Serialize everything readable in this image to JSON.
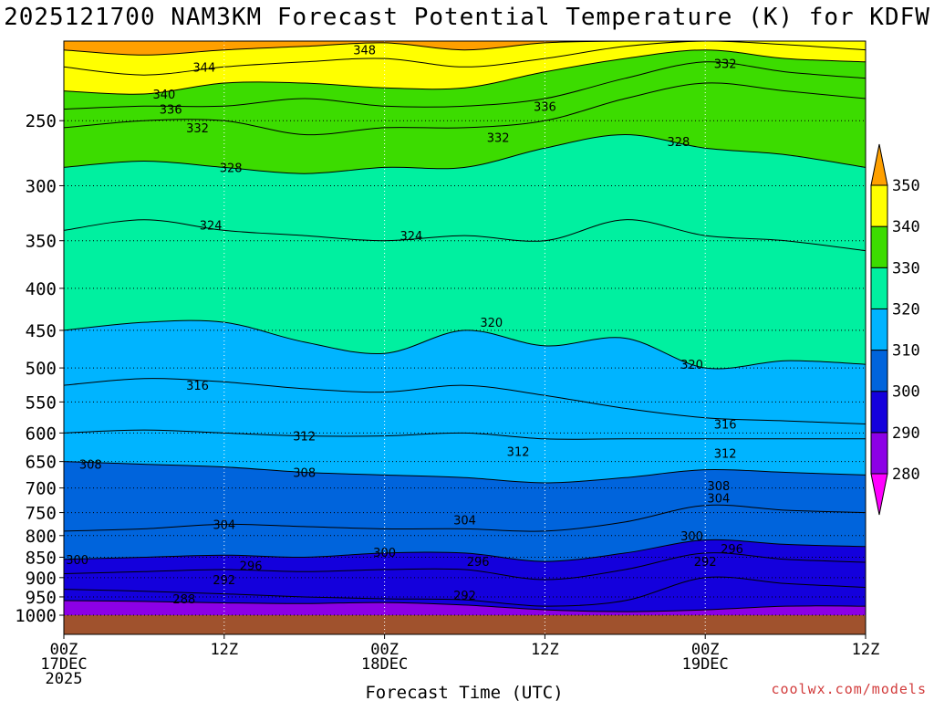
{
  "title": "2025121700 NAM3KM Forecast Potential Temperature (K) for KDFW",
  "credit": "coolwx.com/models",
  "chart_data": {
    "type": "contour",
    "title": "2025121700 NAM3KM Forecast Potential Temperature (K) for KDFW",
    "xlabel": "Forecast Time (UTC)",
    "ylabel": "",
    "x_ticks": [
      {
        "hour": 0,
        "lines": [
          "00Z",
          "17DEC",
          "2025"
        ]
      },
      {
        "hour": 12,
        "lines": [
          "12Z"
        ]
      },
      {
        "hour": 24,
        "lines": [
          "00Z",
          "18DEC"
        ]
      },
      {
        "hour": 36,
        "lines": [
          "12Z"
        ]
      },
      {
        "hour": 48,
        "lines": [
          "00Z",
          "19DEC"
        ]
      },
      {
        "hour": 60,
        "lines": [
          "12Z"
        ]
      }
    ],
    "xlim": [
      0,
      60
    ],
    "y_ticks": [
      250,
      300,
      350,
      400,
      450,
      500,
      550,
      600,
      650,
      700,
      750,
      800,
      850,
      900,
      950,
      1000
    ],
    "ylim": [
      200,
      1000
    ],
    "y_scale": "log-pressure",
    "grid": true,
    "colorbar": {
      "levels": [
        280,
        290,
        300,
        310,
        320,
        330,
        340,
        350
      ],
      "colors": [
        "#ff00ff",
        "#8c00e6",
        "#1400dc",
        "#0064dc",
        "#00b4ff",
        "#00f0a0",
        "#3cdc00",
        "#ffff00",
        "#ffa000"
      ]
    },
    "hours": [
      0,
      6,
      12,
      18,
      24,
      30,
      36,
      42,
      48,
      54,
      60
    ],
    "isentropes": [
      {
        "theta": 288,
        "pressure": [
          960,
          962,
          966,
          968,
          965,
          972,
          985,
          990,
          985,
          975,
          975
        ]
      },
      {
        "theta": 292,
        "pressure": [
          930,
          935,
          942,
          950,
          955,
          958,
          975,
          960,
          900,
          915,
          925
        ]
      },
      {
        "theta": 296,
        "pressure": [
          890,
          885,
          880,
          885,
          880,
          880,
          905,
          880,
          840,
          855,
          862
        ]
      },
      {
        "theta": 300,
        "pressure": [
          855,
          850,
          845,
          850,
          840,
          840,
          860,
          840,
          810,
          820,
          825
        ]
      },
      {
        "theta": 304,
        "pressure": [
          790,
          785,
          775,
          780,
          785,
          785,
          790,
          770,
          735,
          745,
          750
        ]
      },
      {
        "theta": 308,
        "pressure": [
          650,
          655,
          660,
          670,
          675,
          680,
          690,
          680,
          665,
          670,
          675
        ]
      },
      {
        "theta": 312,
        "pressure": [
          600,
          595,
          600,
          605,
          605,
          600,
          610,
          610,
          610,
          610,
          610
        ]
      },
      {
        "theta": 316,
        "pressure": [
          525,
          515,
          520,
          530,
          535,
          525,
          540,
          560,
          575,
          580,
          585
        ]
      },
      {
        "theta": 320,
        "pressure": [
          450,
          440,
          440,
          465,
          480,
          450,
          470,
          460,
          500,
          490,
          495
        ]
      },
      {
        "theta": 324,
        "pressure": [
          340,
          330,
          340,
          345,
          350,
          345,
          350,
          330,
          345,
          350,
          360
        ]
      },
      {
        "theta": 328,
        "pressure": [
          285,
          280,
          285,
          290,
          285,
          285,
          270,
          260,
          270,
          275,
          285
        ]
      },
      {
        "theta": 332,
        "pressure": [
          255,
          250,
          250,
          260,
          255,
          255,
          250,
          235,
          225,
          230,
          235
        ]
      },
      {
        "theta": 336,
        "pressure": [
          242,
          240,
          240,
          235,
          240,
          240,
          235,
          222,
          212,
          218,
          222
        ]
      },
      {
        "theta": 340,
        "pressure": [
          230,
          232,
          225,
          225,
          228,
          228,
          218,
          210,
          205,
          210,
          212
        ]
      },
      {
        "theta": 344,
        "pressure": [
          215,
          220,
          215,
          212,
          210,
          215,
          210,
          203,
          200,
          202,
          205
        ]
      },
      {
        "theta": 348,
        "pressure": [
          205,
          208,
          205,
          203,
          201,
          205,
          201,
          200,
          200,
          200,
          200
        ]
      }
    ],
    "contour_labels": [
      {
        "value": "344",
        "hour": 10.5,
        "p": 215
      },
      {
        "value": "340",
        "hour": 7.5,
        "p": 232
      },
      {
        "value": "336",
        "hour": 8.0,
        "p": 242
      },
      {
        "value": "332",
        "hour": 10.0,
        "p": 255
      },
      {
        "value": "348",
        "hour": 22.5,
        "p": 205
      },
      {
        "value": "336",
        "hour": 36.0,
        "p": 240
      },
      {
        "value": "332",
        "hour": 32.5,
        "p": 262
      },
      {
        "value": "332",
        "hour": 49.5,
        "p": 213
      },
      {
        "value": "328",
        "hour": 12.5,
        "p": 285
      },
      {
        "value": "328",
        "hour": 46.0,
        "p": 265
      },
      {
        "value": "324",
        "hour": 11.0,
        "p": 335
      },
      {
        "value": "324",
        "hour": 26.0,
        "p": 345
      },
      {
        "value": "320",
        "hour": 32.0,
        "p": 440
      },
      {
        "value": "320",
        "hour": 47.0,
        "p": 495
      },
      {
        "value": "316",
        "hour": 10.0,
        "p": 525
      },
      {
        "value": "316",
        "hour": 49.5,
        "p": 585
      },
      {
        "value": "312",
        "hour": 18.0,
        "p": 605
      },
      {
        "value": "312",
        "hour": 34.0,
        "p": 632
      },
      {
        "value": "312",
        "hour": 49.5,
        "p": 635
      },
      {
        "value": "308",
        "hour": 2.0,
        "p": 655
      },
      {
        "value": "308",
        "hour": 18.0,
        "p": 670
      },
      {
        "value": "308",
        "hour": 49.0,
        "p": 695
      },
      {
        "value": "304",
        "hour": 12.0,
        "p": 775
      },
      {
        "value": "304",
        "hour": 30.0,
        "p": 765
      },
      {
        "value": "304",
        "hour": 49.0,
        "p": 720
      },
      {
        "value": "300",
        "hour": 1.0,
        "p": 855
      },
      {
        "value": "300",
        "hour": 24.0,
        "p": 838
      },
      {
        "value": "300",
        "hour": 47.0,
        "p": 800
      },
      {
        "value": "296",
        "hour": 14.0,
        "p": 870
      },
      {
        "value": "296",
        "hour": 31.0,
        "p": 860
      },
      {
        "value": "296",
        "hour": 50.0,
        "p": 830
      },
      {
        "value": "292",
        "hour": 12.0,
        "p": 905
      },
      {
        "value": "292",
        "hour": 30.0,
        "p": 945
      },
      {
        "value": "292",
        "hour": 48.0,
        "p": 860
      },
      {
        "value": "288",
        "hour": 9.0,
        "p": 955
      }
    ]
  }
}
